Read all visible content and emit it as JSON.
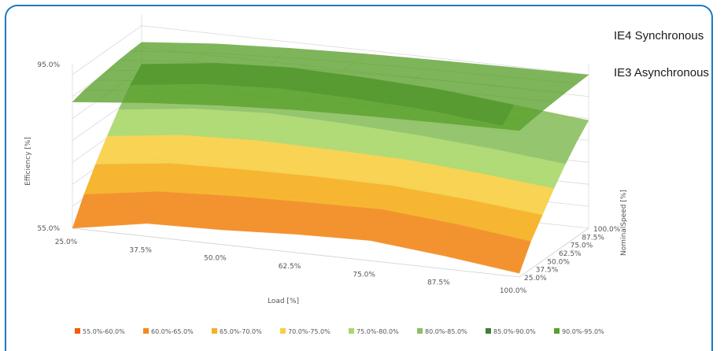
{
  "chart_data": {
    "type": "surface",
    "xlabel": "Load [%]",
    "ylabel": "Efficiency [%]",
    "zlabel": "NominalSpeed [%]",
    "x_ticks": [
      "25.0%",
      "37.5%",
      "50.0%",
      "62.5%",
      "75.0%",
      "87.5%",
      "100.0%"
    ],
    "z_ticks": [
      "25.0%",
      "37.5%",
      "50.0%",
      "62.5%",
      "75.0%",
      "87.5%",
      "100.0%"
    ],
    "y_ticks": [
      "55.0%",
      "95.0%"
    ],
    "ylim": [
      55,
      100
    ],
    "annotations": [
      "IE4 Synchronous",
      "IE3 Asynchronous"
    ],
    "legend_position": "bottom",
    "legend": [
      {
        "label": "55.0%-60.0%",
        "color": "#f25c05"
      },
      {
        "label": "60.0%-65.0%",
        "color": "#f28a1e"
      },
      {
        "label": "65.0%-70.0%",
        "color": "#f5b020"
      },
      {
        "label": "70.0%-75.0%",
        "color": "#f7cf45"
      },
      {
        "label": "75.0%-80.0%",
        "color": "#a9d86b"
      },
      {
        "label": "80.0%-85.0%",
        "color": "#8cc063"
      },
      {
        "label": "85.0%-90.0%",
        "color": "#3f7f38"
      },
      {
        "label": "90.0%-95.0%",
        "color": "#5aa02c"
      }
    ],
    "series": [
      {
        "name": "IE4 Synchronous",
        "efficiency_grid": [
          [
            89.5,
            91.5,
            93.0,
            94.0,
            94.5,
            94.8,
            95.0
          ],
          [
            90.5,
            92.5,
            93.8,
            94.5,
            95.0,
            95.3,
            95.5
          ],
          [
            91.0,
            93.0,
            94.2,
            95.0,
            95.4,
            95.7,
            95.9
          ],
          [
            91.5,
            93.5,
            94.6,
            95.3,
            95.7,
            96.0,
            96.2
          ],
          [
            92.0,
            93.8,
            94.9,
            95.6,
            96.0,
            96.3,
            96.5
          ],
          [
            92.3,
            94.1,
            95.1,
            95.8,
            96.2,
            96.5,
            96.7
          ],
          [
            92.5,
            94.3,
            95.3,
            96.0,
            96.4,
            96.7,
            96.9
          ]
        ]
      },
      {
        "name": "IE3 Asynchronous",
        "efficiency_grid": [
          [
            55.0,
            58.5,
            59.0,
            60.0,
            60.5,
            58.5,
            56.0
          ],
          [
            62.0,
            65.0,
            66.0,
            66.5,
            66.8,
            65.0,
            62.5
          ],
          [
            68.0,
            70.5,
            71.0,
            71.2,
            71.0,
            69.5,
            67.5
          ],
          [
            73.5,
            76.0,
            76.8,
            76.5,
            76.0,
            74.5,
            72.5
          ],
          [
            78.5,
            81.0,
            82.0,
            81.5,
            80.5,
            79.0,
            77.0
          ],
          [
            83.0,
            85.5,
            86.5,
            86.0,
            85.0,
            83.0,
            81.0
          ],
          [
            86.5,
            89.0,
            90.0,
            89.5,
            88.5,
            86.5,
            84.5
          ]
        ]
      }
    ]
  }
}
